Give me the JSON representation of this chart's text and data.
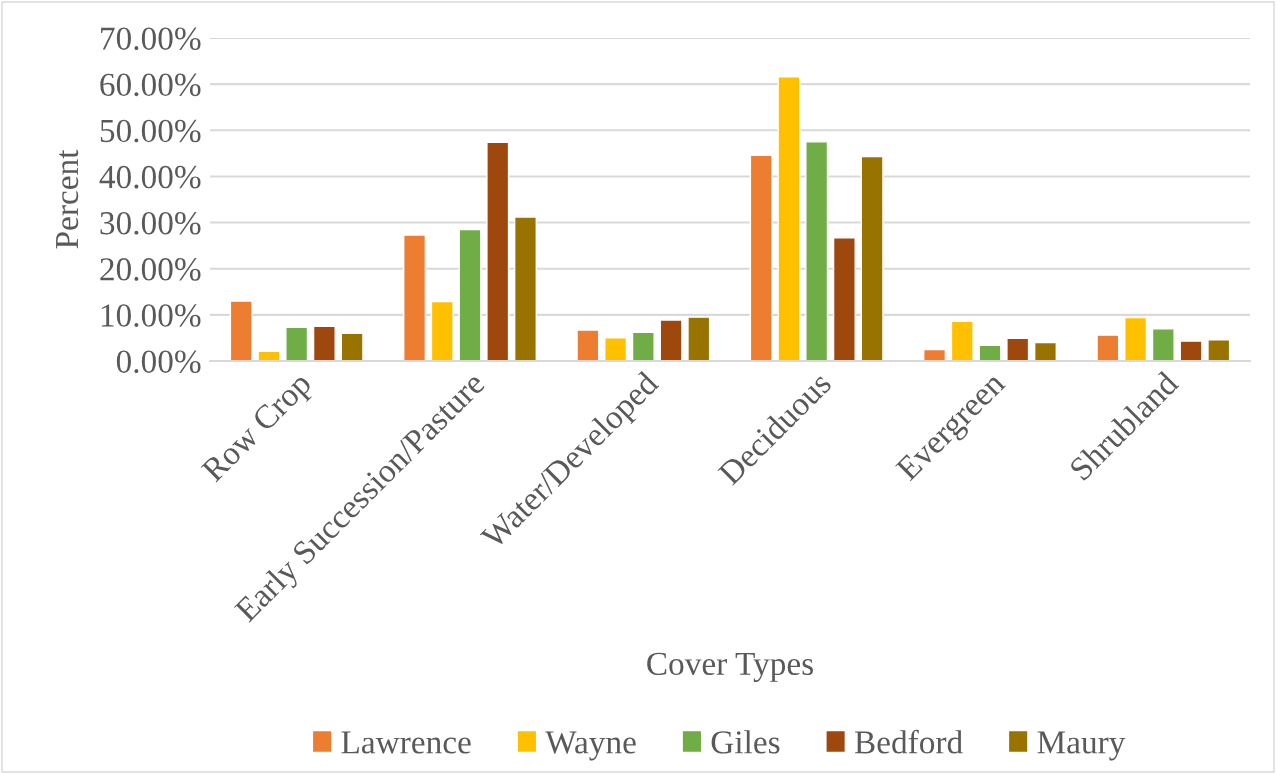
{
  "chart_data": {
    "type": "bar",
    "xlabel": "Cover Types",
    "ylabel": "Percent",
    "categories": [
      "Row Crop",
      "Early Succession/Pasture",
      "Water/Developed",
      "Deciduous",
      "Evergreen",
      "Shrubland"
    ],
    "series": [
      {
        "name": "Lawrence",
        "color": "#ed7d31",
        "values": [
          13.0,
          27.3,
          6.7,
          44.6,
          2.5,
          5.6
        ]
      },
      {
        "name": "Wayne",
        "color": "#ffc000",
        "values": [
          2.1,
          12.9,
          5.0,
          61.6,
          8.6,
          9.4
        ]
      },
      {
        "name": "Giles",
        "color": "#70ad47",
        "values": [
          7.3,
          28.5,
          6.2,
          47.5,
          3.4,
          7.0
        ]
      },
      {
        "name": "Bedford",
        "color": "#9e480e",
        "values": [
          7.5,
          47.4,
          8.9,
          26.7,
          4.9,
          4.3
        ]
      },
      {
        "name": "Maury",
        "color": "#997300",
        "values": [
          6.0,
          31.2,
          9.5,
          44.3,
          4.0,
          4.6
        ]
      }
    ],
    "ylim": [
      0,
      70
    ],
    "yticks": [
      {
        "value": 0,
        "label": "0.00%"
      },
      {
        "value": 10,
        "label": "10.00%"
      },
      {
        "value": 20,
        "label": "20.00%"
      },
      {
        "value": 30,
        "label": "30.00%"
      },
      {
        "value": 40,
        "label": "40.00%"
      },
      {
        "value": 50,
        "label": "50.00%"
      },
      {
        "value": 60,
        "label": "60.00%"
      },
      {
        "value": 70,
        "label": "70.00%"
      }
    ],
    "grid": "y",
    "legend": "bottom"
  }
}
